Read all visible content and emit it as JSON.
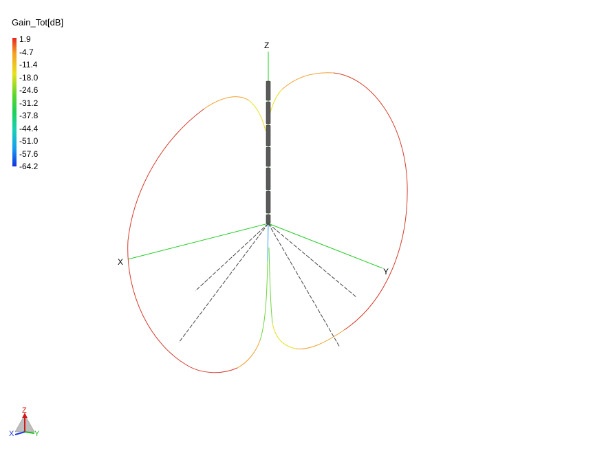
{
  "legend": {
    "title": "Gain_Tot[dB]",
    "ticks": [
      "1.9",
      "-4.7",
      "-11.4",
      "-18.0",
      "-24.6",
      "-31.2",
      "-37.8",
      "-44.4",
      "-51.0",
      "-57.6",
      "-64.2"
    ],
    "gradient_colors": [
      "#e8231e",
      "#f6a020",
      "#e7e21a",
      "#59d62a",
      "#1bd25a",
      "#17d0b8",
      "#159ef0",
      "#1232e0"
    ]
  },
  "axes": {
    "z": "Z",
    "x": "X",
    "y": "Y"
  },
  "triad": {
    "z": "Z",
    "x": "X",
    "y": "Y"
  },
  "colors": {
    "pattern_outer": "#d63a2a",
    "pattern_mid": "#f0a030",
    "pattern_inner": "#e6e020",
    "pattern_low": "#6cd63a",
    "pattern_null": "#2aa0f0",
    "axis_line": "#22cc22",
    "antenna": "#555555",
    "radial": "#444444"
  }
}
